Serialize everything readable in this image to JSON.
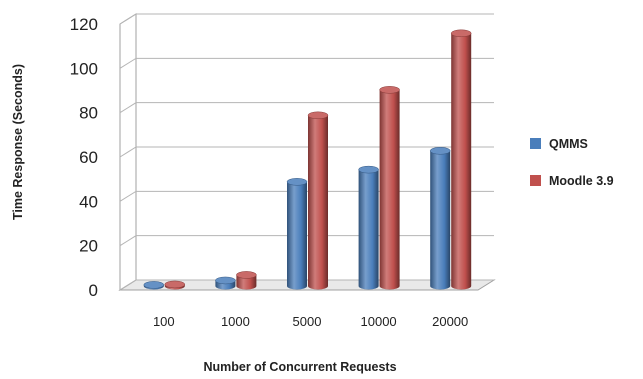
{
  "chart_data": {
    "type": "bar",
    "categories": [
      "100",
      "1000",
      "5000",
      "10000",
      "20000"
    ],
    "series": [
      {
        "name": "QMMS",
        "values": [
          0.5,
          2.5,
          47,
          52.5,
          61
        ],
        "color": "#4a7ebb"
      },
      {
        "name": "Moodle 3.9",
        "values": [
          0.7,
          5,
          77,
          88.5,
          114
        ],
        "color": "#c0504d"
      }
    ],
    "title": "",
    "xlabel": "Number of Concurrent Requests",
    "ylabel": "Time Response (Seconds)",
    "ylim": [
      0,
      120
    ],
    "yticks": [
      0,
      20,
      40,
      60,
      80,
      100,
      120
    ],
    "grid": true,
    "legend": "right",
    "style": "3d-cylinder"
  }
}
